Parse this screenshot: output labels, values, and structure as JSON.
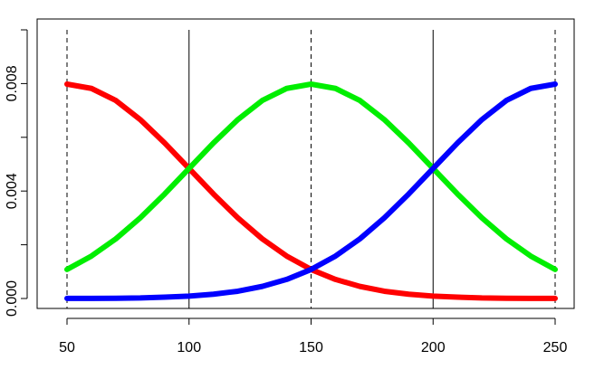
{
  "chart_data": {
    "type": "line",
    "title": "",
    "xlabel": "",
    "ylabel": "",
    "xlim": [
      40,
      260
    ],
    "ylim": [
      0,
      0.01
    ],
    "x_ticks": [
      50,
      100,
      150,
      200,
      250
    ],
    "x_tick_labels": [
      "50",
      "100",
      "150",
      "200",
      "250"
    ],
    "y_ticks": [
      0.0,
      0.002,
      0.004,
      0.006,
      0.008,
      0.01
    ],
    "y_tick_labels": [
      "0.000",
      "",
      "0.004",
      "",
      "0.008",
      ""
    ],
    "grid": false,
    "vlines": [
      {
        "x": 50,
        "style": "dashed"
      },
      {
        "x": 100,
        "style": "solid"
      },
      {
        "x": 150,
        "style": "dashed"
      },
      {
        "x": 200,
        "style": "solid"
      },
      {
        "x": 250,
        "style": "dashed"
      }
    ],
    "x": [
      50,
      60,
      70,
      80,
      90,
      100,
      110,
      120,
      130,
      140,
      150,
      160,
      170,
      180,
      190,
      200,
      210,
      220,
      230,
      240,
      250
    ],
    "series": [
      {
        "color": "#ff0000",
        "values": [
          0.00798,
          0.00782,
          0.00737,
          0.00666,
          0.00579,
          0.00484,
          0.00389,
          0.003,
          0.00222,
          0.00158,
          0.00108,
          0.00071,
          0.00045,
          0.00027,
          0.00016,
          9e-05,
          5e-05,
          2e-05,
          1e-05,
          6e-06,
          3e-06
        ]
      },
      {
        "color": "#00ee00",
        "values": [
          0.00108,
          0.00158,
          0.00222,
          0.003,
          0.00389,
          0.00484,
          0.00579,
          0.00666,
          0.00737,
          0.00782,
          0.00798,
          0.00782,
          0.00737,
          0.00666,
          0.00579,
          0.00484,
          0.00389,
          0.003,
          0.00222,
          0.00158,
          0.00108
        ]
      },
      {
        "color": "#0000ff",
        "values": [
          3e-06,
          6e-06,
          1e-05,
          2e-05,
          5e-05,
          9e-05,
          0.00016,
          0.00027,
          0.00045,
          0.00071,
          0.00108,
          0.00158,
          0.00222,
          0.003,
          0.00389,
          0.00484,
          0.00579,
          0.00666,
          0.00737,
          0.00782,
          0.00798
        ]
      }
    ]
  }
}
